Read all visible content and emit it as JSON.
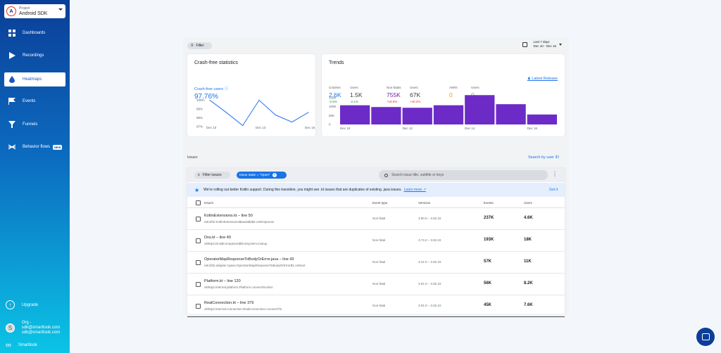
{
  "project": {
    "avatar": "A",
    "label": "Project",
    "name": "Android SDK"
  },
  "nav": [
    {
      "label": "Dashboards",
      "icon": "grid-icon"
    },
    {
      "label": "Recordings",
      "icon": "play-icon"
    },
    {
      "label": "Heatmaps",
      "icon": "drop-icon",
      "active": true
    },
    {
      "label": "Events",
      "icon": "flag-icon"
    },
    {
      "label": "Funnels",
      "icon": "funnel-icon"
    },
    {
      "label": "Behavior flows",
      "icon": "flow-icon",
      "badge": "NEW"
    }
  ],
  "bottom": {
    "upgrade": "Upgrade",
    "org_avatar": "S",
    "org": "Org - sdk@smartlook.com",
    "email": "sdk@smartlook.com",
    "brand": "Smartlook"
  },
  "toolbar": {
    "filter": "Filter",
    "date_range_label": "Last 7 days",
    "date_range": "Dec 10 - Dec 16"
  },
  "crash_free": {
    "title": "Crash-free statistics",
    "label": "Crash-free users",
    "value": "97.76%"
  },
  "trends": {
    "title": "Trends",
    "link": "Latest Release",
    "metrics": [
      {
        "label": "Crashes",
        "value": "2.6K",
        "delta": "-2.5%",
        "color": "#1a73e8",
        "delta_color": "#1e8e3e"
      },
      {
        "label": "Users",
        "value": "1.5K",
        "delta": "-2.1%",
        "color": "#3c4043",
        "delta_color": "#1e8e3e"
      },
      {
        "label": "Non-fatals",
        "value": "755K",
        "delta": "+18.6%",
        "color": "#7b1fa2",
        "delta_color": "#d93025"
      },
      {
        "label": "Users",
        "value": "67K",
        "delta": "+40.2%",
        "color": "#3c4043",
        "delta_color": "#d93025"
      },
      {
        "label": "ANRs",
        "value": "0",
        "delta": "",
        "color": "#f29900",
        "delta_color": "#5f6368"
      },
      {
        "label": "Users",
        "value": "0",
        "delta": "",
        "color": "#9aa0a6",
        "delta_color": "#5f6368"
      }
    ]
  },
  "chart_data": [
    {
      "type": "line",
      "x": [
        "Dec 10",
        "Dec 11",
        "Dec 12",
        "Dec 13",
        "Dec 14",
        "Dec 15",
        "Dec 16"
      ],
      "values": [
        100,
        98.6,
        97.1,
        100,
        98.3,
        97.5,
        98.6
      ],
      "y_ticks": [
        "100%",
        "99%",
        "98%",
        "97%"
      ],
      "x_ticks": [
        "Dec 10",
        "Dec 13",
        "Dec 16"
      ],
      "ylim": [
        96.9,
        100.2
      ],
      "color": "#4285f4"
    },
    {
      "type": "bar",
      "categories": [
        "Dec 10",
        "Dec 11",
        "Dec 12",
        "Dec 13",
        "Dec 14",
        "Dec 15",
        "Dec 16"
      ],
      "values": [
        108000,
        98000,
        94000,
        108000,
        165000,
        114000,
        56000
      ],
      "y_ticks": [
        "150K",
        "100K",
        "50K",
        "0"
      ],
      "x_ticks": [
        "Dec 10",
        "Dec 12",
        "Dec 14",
        "Dec 16"
      ],
      "ylim": [
        0,
        170000
      ],
      "color": "#6c2bc7"
    }
  ],
  "issues": {
    "section_label": "Issues",
    "search_user": "Search by user ID",
    "filter_issues": "Filter issues",
    "state_chip": "Issue state = \"Open\"",
    "search_placeholder": "Search issue title, subtitle or keys",
    "banner": "We're rolling out better Kotlin support. During this transition, you might see .kt issues that are duplicates of existing .java issues.",
    "learn_more": "Learn more ↗",
    "got_it": "Got it",
    "columns": {
      "issues": "Issues",
      "type": "Event type",
      "versions": "Versions",
      "events": "Events",
      "users": "Users"
    },
    "rows": [
      {
        "name": "KotlinExtensions.kt – line 50",
        "sub": "retrofit2.KotlinExtensions$await$2$2.onResponse",
        "type": "Non-fatal",
        "versions": "3.80.0 – 3.92.22",
        "events": "237K",
        "users": "4.6K"
      },
      {
        "name": "Dns.kt – line 49",
        "sub": "okhttp3.Dns$Companion$DnsSystem.lookup",
        "type": "Non-fatal",
        "versions": "3.74.0 – 3.92.22",
        "events": "193K",
        "users": "18K"
      },
      {
        "name": "OperatorMapResponseToBodyOrError.java – line 43",
        "sub": "retrofit2.adapter.rxjava.OperatorMapResponseToBodyOrError$1.onNext",
        "type": "Non-fatal",
        "versions": "3.41.0 – 3.92.22",
        "events": "57K",
        "users": "11K"
      },
      {
        "name": "Platform.kt – line 120",
        "sub": "okhttp3.internal.platform.Platform.connectSocket",
        "type": "Non-fatal",
        "versions": "3.91.0 – 3.92.22",
        "events": "56K",
        "users": "8.2K"
      },
      {
        "name": "RealConnection.kt – line 379",
        "sub": "okhttp3.internal.connection.RealConnection.connectTls",
        "type": "Non-fatal",
        "versions": "3.91.0 – 3.92.22",
        "events": "45K",
        "users": "7.6K"
      }
    ]
  }
}
